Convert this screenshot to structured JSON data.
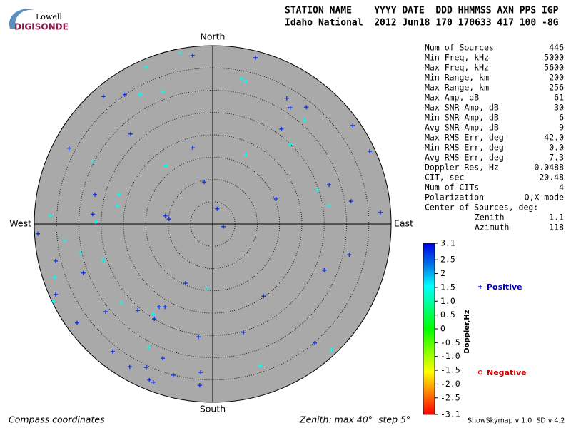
{
  "logo": {
    "top": "Lowell",
    "bottom": "DIGISONDE"
  },
  "header": {
    "line1": "STATION NAME    YYYY DATE  DDD HHMMSS AXN PPS IGP",
    "line2": "Idaho National  2012 Jun18 170 170633 417 100 -8G"
  },
  "stats": [
    [
      "Num of Sources",
      "446"
    ],
    [
      "Min Freq, kHz",
      "5000"
    ],
    [
      "Max Freq, kHz",
      "5600"
    ],
    [
      "Min Range, km",
      "200"
    ],
    [
      "Max Range, km",
      "256"
    ],
    [
      "Max Amp, dB",
      "61"
    ],
    [
      "Max SNR Amp, dB",
      "30"
    ],
    [
      "Min SNR Amp, dB",
      "6"
    ],
    [
      "Avg SNR Amp, dB",
      "9"
    ],
    [
      "Max RMS Err, deg",
      "42.0"
    ],
    [
      "Min RMS Err, deg",
      "0.0"
    ],
    [
      "Avg RMS Err, deg",
      "7.3"
    ],
    [
      "Doppler Res, Hz",
      "0.0488"
    ],
    [
      "CIT, sec",
      "20.48"
    ],
    [
      "Num of CITs",
      "4"
    ],
    [
      "Polarization",
      "O,X-mode"
    ]
  ],
  "center": {
    "title": "Center of Sources, deg:",
    "rows": [
      [
        "Zenith",
        "1.1"
      ],
      [
        "Azimuth",
        "118"
      ]
    ]
  },
  "footer": {
    "left": "Compass coordinates",
    "middle": "Zenith: max 40°  step 5°",
    "right": "ShowSkymap v 1.0  SD v 4.2"
  },
  "chart_data": {
    "type": "skymap",
    "compass": {
      "north": "North",
      "south": "South",
      "west": "West",
      "east": "East"
    },
    "xlim": [
      -40,
      40
    ],
    "ylim": [
      -40,
      40
    ],
    "rticks": [
      5,
      10,
      15,
      20,
      25,
      30,
      35,
      40
    ],
    "colorbar": {
      "label": "Doppler,Hz",
      "lim": [
        -3.1,
        3.1
      ],
      "ticks": [
        3.1,
        2.5,
        2,
        1.5,
        {
          "value": 1,
          "label": "1.0"
        },
        0.5,
        0,
        -0.5,
        {
          "value": -1,
          "label": "-1.0"
        },
        -1.5,
        {
          "value": -2,
          "label": "-2.0"
        },
        -2.5,
        -3.1
      ]
    },
    "legend": {
      "positive": "Positive",
      "negative": "Negative"
    },
    "series": [
      {
        "name": "Sources",
        "x": [
          -7.4,
          -4.5,
          9.6,
          -14.9,
          6.4,
          7.4,
          -24.5,
          -19.7,
          -16.2,
          -11.2,
          16.6,
          17.4,
          21.0,
          20.6,
          -18.4,
          15.4,
          31.4,
          17.3,
          -32.2,
          -4.5,
          35.2,
          -26.9,
          7.4,
          -10.4,
          -1.9,
          26.1,
          23.5,
          -26.4,
          -21.1,
          14.2,
          -21.3,
          31.0,
          26.1,
          -36.5,
          -26.9,
          -10.6,
          -9.8,
          -26.2,
          1.0,
          37.6,
          -39.2,
          2.4,
          -33.1,
          -29.6,
          30.6,
          -35.2,
          -24.6,
          -29.0,
          25.0,
          -35.4,
          -6.1,
          -1.3,
          -35.2,
          -20.5,
          11.4,
          -35.7,
          -12.0,
          -10.7,
          -24.0,
          -16.8,
          -13.3,
          -13.1,
          -30.4,
          6.9,
          -3.2,
          22.9,
          -14.4,
          26.6,
          -22.4,
          -11.2,
          -18.6,
          -14.9,
          10.6,
          -2.7,
          -8.8,
          -14.2,
          -13.3,
          -2.9
        ],
        "y": [
          38.4,
          37.8,
          37.3,
          35.2,
          32.5,
          32.0,
          28.6,
          29.0,
          29.1,
          29.6,
          28.2,
          26.1,
          26.2,
          23.2,
          20.2,
          21.3,
          22.1,
          17.9,
          17.0,
          17.1,
          16.3,
          14.1,
          15.5,
          13.0,
          9.4,
          8.8,
          7.7,
          6.6,
          6.6,
          5.6,
          4.0,
          5.1,
          4.2,
          1.9,
          2.2,
          1.8,
          1.1,
          0.5,
          3.4,
          2.6,
          -2.2,
          -0.6,
          -3.7,
          -6.6,
          -6.9,
          -8.3,
          -8.0,
          -11.0,
          -10.4,
          -12.0,
          -13.3,
          -14.6,
          -15.8,
          -17.6,
          -16.2,
          -17.4,
          -18.6,
          -18.6,
          -19.7,
          -19.4,
          -20.2,
          -21.3,
          -22.2,
          -24.3,
          -25.3,
          -26.7,
          -27.7,
          -28.3,
          -28.6,
          -30.1,
          -32.0,
          -32.2,
          -31.8,
          -33.3,
          -33.9,
          -35.0,
          -35.5,
          -36.2
        ],
        "doppler": [
          1.5,
          2.8,
          2.8,
          1.5,
          1.5,
          1.5,
          2.8,
          2.8,
          1.5,
          1.5,
          2.8,
          2.8,
          2.8,
          1.5,
          2.8,
          2.8,
          2.8,
          1.5,
          2.8,
          2.8,
          2.8,
          1.5,
          1.5,
          1.5,
          2.8,
          2.8,
          1.5,
          2.8,
          1.5,
          2.8,
          1.5,
          2.8,
          1.5,
          1.5,
          2.8,
          2.8,
          2.8,
          1.5,
          2.8,
          2.8,
          2.8,
          2.8,
          1.5,
          1.5,
          2.8,
          2.8,
          1.5,
          2.8,
          2.8,
          1.5,
          2.8,
          1.5,
          2.8,
          1.5,
          2.8,
          1.5,
          2.8,
          2.8,
          2.8,
          2.8,
          1.5,
          2.8,
          2.8,
          2.8,
          2.8,
          2.8,
          1.5,
          1.5,
          2.8,
          2.8,
          2.8,
          2.8,
          1.5,
          2.8,
          2.8,
          2.8,
          2.8,
          2.8
        ]
      }
    ]
  }
}
